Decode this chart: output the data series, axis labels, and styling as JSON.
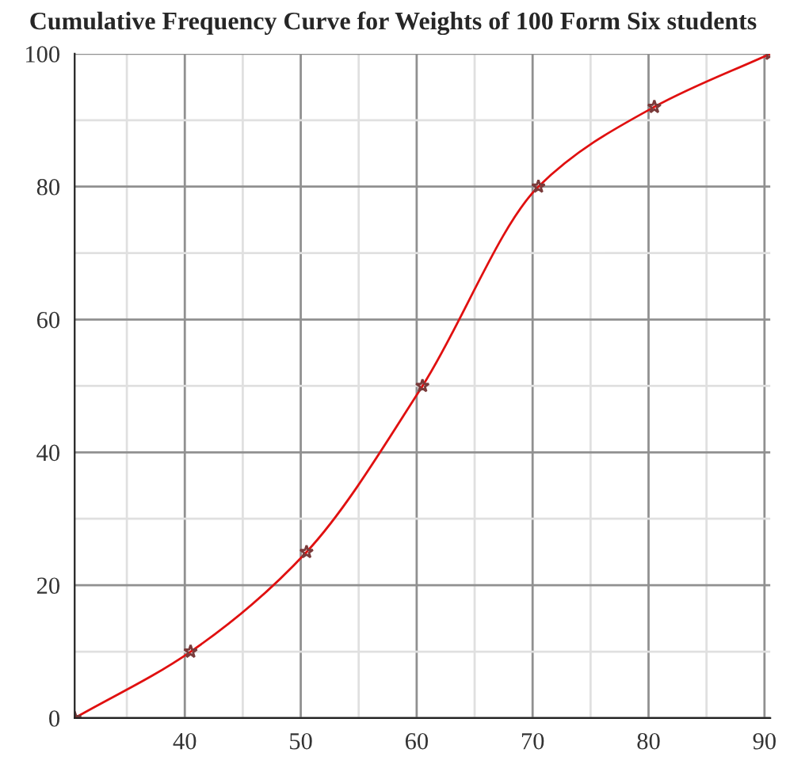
{
  "chart_data": {
    "type": "line",
    "title": "Cumulative Frequency Curve for Weights of 100 Form Six students",
    "x": [
      30.5,
      40.5,
      50.5,
      60.5,
      70.5,
      80.5,
      90.5
    ],
    "series": [
      {
        "color": "#e01010",
        "values": [
          0,
          10,
          25,
          50,
          80,
          92,
          100
        ]
      }
    ],
    "marker": "star",
    "line_style": "solid",
    "xlim": [
      30.5,
      90.5
    ],
    "ylim": [
      0,
      100
    ],
    "xticks": [
      {
        "value": 35,
        "label": null
      },
      40,
      {
        "value": 45,
        "label": null
      },
      50,
      {
        "value": 55,
        "label": null
      },
      60,
      {
        "value": 65,
        "label": null
      },
      70,
      {
        "value": 75,
        "label": null
      },
      80,
      {
        "value": 85,
        "label": null
      },
      90
    ],
    "yticks": [
      0,
      {
        "value": 10,
        "label": null
      },
      20,
      {
        "value": 30,
        "label": null
      },
      40,
      {
        "value": 50,
        "label": null
      },
      60,
      {
        "value": 70,
        "label": null
      },
      80,
      {
        "value": 90,
        "label": null
      },
      100
    ],
    "grid": true
  }
}
